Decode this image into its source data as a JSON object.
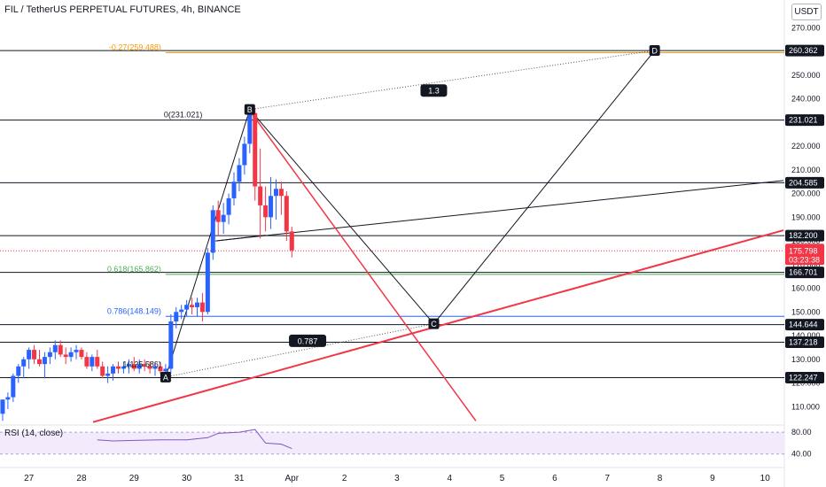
{
  "header": {
    "title": "FIL / TetherUS PERPETUAL FUTURES, 4h, BINANCE",
    "currency": "USDT"
  },
  "chart_data": {
    "type": "candlestick",
    "ylim": [
      103,
      275
    ],
    "xlim": [
      -0.55,
      14.35
    ],
    "y_ticks": [
      270,
      260,
      250,
      240,
      230,
      220,
      210,
      200,
      190,
      180,
      170,
      160,
      150,
      140,
      130,
      120,
      110
    ],
    "x_ticks": [
      {
        "x": 0,
        "label": "27"
      },
      {
        "x": 1,
        "label": "28"
      },
      {
        "x": 2,
        "label": "29"
      },
      {
        "x": 3,
        "label": "30"
      },
      {
        "x": 4,
        "label": "31"
      },
      {
        "x": 5,
        "label": "Apr"
      },
      {
        "x": 6,
        "label": "2"
      },
      {
        "x": 7,
        "label": "3"
      },
      {
        "x": 8,
        "label": "4"
      },
      {
        "x": 9,
        "label": "5"
      },
      {
        "x": 10,
        "label": "6"
      },
      {
        "x": 11,
        "label": "7"
      },
      {
        "x": 12,
        "label": "8"
      },
      {
        "x": 13,
        "label": "9"
      },
      {
        "x": 14,
        "label": "10"
      }
    ],
    "candles": [
      {
        "t": -0.5,
        "o": 107,
        "h": 113,
        "l": 104,
        "c": 113
      },
      {
        "t": -0.4,
        "o": 113,
        "h": 116,
        "l": 109,
        "c": 114
      },
      {
        "t": -0.3,
        "o": 114,
        "h": 124,
        "l": 112,
        "c": 123
      },
      {
        "t": -0.2,
        "o": 123,
        "h": 128,
        "l": 120,
        "c": 127
      },
      {
        "t": -0.1,
        "o": 127,
        "h": 131,
        "l": 122,
        "c": 130
      },
      {
        "t": 0.0,
        "o": 130,
        "h": 135,
        "l": 126,
        "c": 134
      },
      {
        "t": 0.1,
        "o": 134,
        "h": 136,
        "l": 128,
        "c": 130
      },
      {
        "t": 0.2,
        "o": 130,
        "h": 134,
        "l": 127,
        "c": 128
      },
      {
        "t": 0.3,
        "o": 128,
        "h": 133,
        "l": 122,
        "c": 131
      },
      {
        "t": 0.4,
        "o": 131,
        "h": 135,
        "l": 128,
        "c": 133
      },
      {
        "t": 0.5,
        "o": 133,
        "h": 138,
        "l": 130,
        "c": 136
      },
      {
        "t": 0.6,
        "o": 136,
        "h": 138,
        "l": 131,
        "c": 132
      },
      {
        "t": 0.7,
        "o": 132,
        "h": 135,
        "l": 128,
        "c": 131
      },
      {
        "t": 0.8,
        "o": 131,
        "h": 135,
        "l": 129,
        "c": 133
      },
      {
        "t": 0.9,
        "o": 133,
        "h": 136,
        "l": 130,
        "c": 134
      },
      {
        "t": 1.0,
        "o": 134,
        "h": 135,
        "l": 130,
        "c": 131
      },
      {
        "t": 1.1,
        "o": 131,
        "h": 133,
        "l": 126,
        "c": 127
      },
      {
        "t": 1.2,
        "o": 127,
        "h": 132,
        "l": 125,
        "c": 131
      },
      {
        "t": 1.3,
        "o": 131,
        "h": 134,
        "l": 126,
        "c": 127
      },
      {
        "t": 1.4,
        "o": 127,
        "h": 129,
        "l": 122,
        "c": 123
      },
      {
        "t": 1.5,
        "o": 123,
        "h": 127,
        "l": 120,
        "c": 124
      },
      {
        "t": 1.6,
        "o": 124,
        "h": 128,
        "l": 121,
        "c": 127
      },
      {
        "t": 1.7,
        "o": 127,
        "h": 129,
        "l": 124,
        "c": 126
      },
      {
        "t": 1.8,
        "o": 126,
        "h": 129,
        "l": 124,
        "c": 127
      },
      {
        "t": 1.9,
        "o": 127,
        "h": 130,
        "l": 124,
        "c": 128
      },
      {
        "t": 2.0,
        "o": 128,
        "h": 131,
        "l": 125,
        "c": 126
      },
      {
        "t": 2.1,
        "o": 126,
        "h": 130,
        "l": 124,
        "c": 128
      },
      {
        "t": 2.2,
        "o": 128,
        "h": 130,
        "l": 125,
        "c": 127
      },
      {
        "t": 2.3,
        "o": 127,
        "h": 129,
        "l": 124,
        "c": 126
      },
      {
        "t": 2.4,
        "o": 126,
        "h": 129,
        "l": 123,
        "c": 127
      },
      {
        "t": 2.5,
        "o": 127,
        "h": 129,
        "l": 124,
        "c": 125
      },
      {
        "t": 2.6,
        "o": 125,
        "h": 128,
        "l": 122,
        "c": 126
      },
      {
        "t": 2.7,
        "o": 126,
        "h": 149,
        "l": 124,
        "c": 146
      },
      {
        "t": 2.8,
        "o": 146,
        "h": 152,
        "l": 143,
        "c": 150
      },
      {
        "t": 2.9,
        "o": 150,
        "h": 153,
        "l": 147,
        "c": 151
      },
      {
        "t": 3.0,
        "o": 151,
        "h": 155,
        "l": 148,
        "c": 153
      },
      {
        "t": 3.1,
        "o": 153,
        "h": 156,
        "l": 149,
        "c": 152
      },
      {
        "t": 3.2,
        "o": 152,
        "h": 156,
        "l": 148,
        "c": 154
      },
      {
        "t": 3.3,
        "o": 154,
        "h": 158,
        "l": 146,
        "c": 150
      },
      {
        "t": 3.4,
        "o": 150,
        "h": 177,
        "l": 149,
        "c": 175
      },
      {
        "t": 3.5,
        "o": 175,
        "h": 195,
        "l": 172,
        "c": 193
      },
      {
        "t": 3.6,
        "o": 193,
        "h": 197,
        "l": 182,
        "c": 188
      },
      {
        "t": 3.7,
        "o": 188,
        "h": 196,
        "l": 183,
        "c": 191
      },
      {
        "t": 3.8,
        "o": 191,
        "h": 200,
        "l": 187,
        "c": 198
      },
      {
        "t": 3.9,
        "o": 198,
        "h": 209,
        "l": 195,
        "c": 205
      },
      {
        "t": 4.0,
        "o": 205,
        "h": 215,
        "l": 201,
        "c": 212
      },
      {
        "t": 4.1,
        "o": 212,
        "h": 224,
        "l": 208,
        "c": 221
      },
      {
        "t": 4.2,
        "o": 221,
        "h": 236,
        "l": 217,
        "c": 234
      },
      {
        "t": 4.3,
        "o": 234,
        "h": 236,
        "l": 197,
        "c": 203
      },
      {
        "t": 4.4,
        "o": 203,
        "h": 219,
        "l": 181,
        "c": 195
      },
      {
        "t": 4.5,
        "o": 195,
        "h": 203,
        "l": 184,
        "c": 190
      },
      {
        "t": 4.6,
        "o": 190,
        "h": 207,
        "l": 185,
        "c": 199
      },
      {
        "t": 4.7,
        "o": 199,
        "h": 206,
        "l": 189,
        "c": 202
      },
      {
        "t": 4.8,
        "o": 202,
        "h": 205,
        "l": 191,
        "c": 199
      },
      {
        "t": 4.9,
        "o": 199,
        "h": 201,
        "l": 180,
        "c": 184
      },
      {
        "t": 5.0,
        "o": 184,
        "h": 186,
        "l": 173,
        "c": 176
      }
    ],
    "annotations": {
      "levels": [
        {
          "price": 260.362,
          "label": "260.362"
        },
        {
          "price": 231.021,
          "label": "231.021"
        },
        {
          "price": 204.585,
          "label": "204.585"
        },
        {
          "price": 182.2,
          "label": "182.200"
        },
        {
          "price": 166.701,
          "label": "166.701"
        },
        {
          "price": 144.644,
          "label": "144.644"
        },
        {
          "price": 137.218,
          "label": "137.218"
        },
        {
          "price": 122.247,
          "label": "122.247"
        }
      ],
      "fib_labels": [
        {
          "text": "-0.27(259.488)",
          "price": 259.488,
          "color": "#ff9800"
        },
        {
          "text": "0(231.021)",
          "price": 231.021,
          "color": "#131722"
        },
        {
          "text": "0.618(165.862)",
          "price": 165.862,
          "color": "#4caf50"
        },
        {
          "text": "0.786(148.149)",
          "price": 148.149,
          "color": "#2962ff"
        },
        {
          "text": "1(125.586)",
          "price": 125.586,
          "color": "#131722"
        }
      ],
      "points": [
        {
          "name": "A",
          "t": 2.6,
          "price": 122.5
        },
        {
          "name": "B",
          "t": 4.2,
          "price": 235.5
        },
        {
          "name": "C",
          "t": 7.7,
          "price": 145
        },
        {
          "name": "D",
          "t": 11.9,
          "price": 260.4
        }
      ],
      "ratios": [
        {
          "text": "1.3",
          "t": 7.7,
          "price": 243.5
        },
        {
          "text": "0.787",
          "t": 5.3,
          "price": 137.8
        }
      ],
      "current_price": "175.798",
      "countdown": "03:23:38",
      "rsi_label": "RSI (14, close)",
      "rsi_ticks": [
        80.0,
        40.0
      ]
    },
    "rsi": {
      "values": [
        [
          1.3,
          66
        ],
        [
          1.6,
          64
        ],
        [
          2.0,
          65
        ],
        [
          2.5,
          66
        ],
        [
          3.0,
          66
        ],
        [
          3.4,
          70
        ],
        [
          3.6,
          78
        ],
        [
          4.0,
          80
        ],
        [
          4.3,
          85
        ],
        [
          4.5,
          60
        ],
        [
          4.8,
          58
        ],
        [
          5.0,
          50
        ]
      ],
      "ylim": [
        20,
        90
      ]
    },
    "colors": {
      "up": "#2962ff",
      "down": "#f23645",
      "trend": "#f23645",
      "rsi": "#7e57c2",
      "rsi_band": "#f3eafc"
    }
  }
}
